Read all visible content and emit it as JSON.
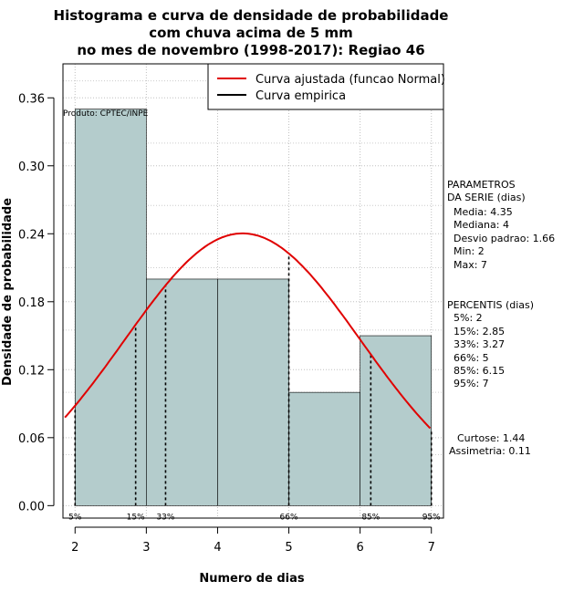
{
  "chart_data": {
    "type": "histogram",
    "title_lines": [
      "Histograma e curva de densidade de probabilidade",
      "com chuva acima de 5 mm",
      "no mes de novembro (1998-2017): Regiao 46"
    ],
    "xlabel": "Numero de dias",
    "ylabel": "Densidade de probabilidade",
    "xlim": [
      1.83,
      7.17
    ],
    "ylim": [
      -0.011,
      0.39
    ],
    "xticks": [
      2,
      3,
      4,
      5,
      6,
      7
    ],
    "yticks": [
      0.0,
      0.06,
      0.12,
      0.18,
      0.24,
      0.3,
      0.36
    ],
    "ytick_labels": [
      "0.00",
      "0.06",
      "0.12",
      "0.18",
      "0.24",
      "0.30",
      "0.36"
    ],
    "grid": true,
    "bars": [
      {
        "x0": 2,
        "x1": 3,
        "density": 0.35
      },
      {
        "x0": 3,
        "x1": 4,
        "density": 0.2
      },
      {
        "x0": 4,
        "x1": 5,
        "density": 0.2
      },
      {
        "x0": 5,
        "x1": 6,
        "density": 0.1
      },
      {
        "x0": 6,
        "x1": 7,
        "density": 0.15
      }
    ],
    "normal_fit": {
      "mean": 4.35,
      "sd": 1.66,
      "color": "#e00000"
    },
    "percentile_marks": [
      {
        "label": "5%",
        "x": 2.0
      },
      {
        "label": "15%",
        "x": 2.85
      },
      {
        "label": "33%",
        "x": 3.27
      },
      {
        "label": "66%",
        "x": 5.0
      },
      {
        "label": "85%",
        "x": 6.15
      },
      {
        "label": "95%",
        "x": 7.0
      }
    ],
    "legend": {
      "placement": "top-right",
      "entries": [
        {
          "label": "Curva ajustada (funcao Normal)",
          "color": "#e00000"
        },
        {
          "label": "Curva empirica",
          "color": "#000000"
        }
      ]
    },
    "annotation": "Produto: CPTEC/INPE",
    "bar_color": "#b4cccc"
  },
  "side_panel": {
    "parametros_lines": [
      "PARAMETROS",
      "DA SERIE (dias)",
      "  Media: 4.35",
      "  Mediana: 4",
      "  Desvio padrao: 1.66",
      "  Min: 2",
      "  Max: 7"
    ],
    "percentis_lines": [
      "PERCENTIS (dias)",
      "  5%: 2",
      "  15%: 2.85",
      "  33%: 3.27",
      "  66%: 5",
      "  85%: 6.15",
      "  95%: 7"
    ],
    "stats_lines": [
      "  Curtose: 1.44",
      "Assimetria: 0.11"
    ]
  }
}
